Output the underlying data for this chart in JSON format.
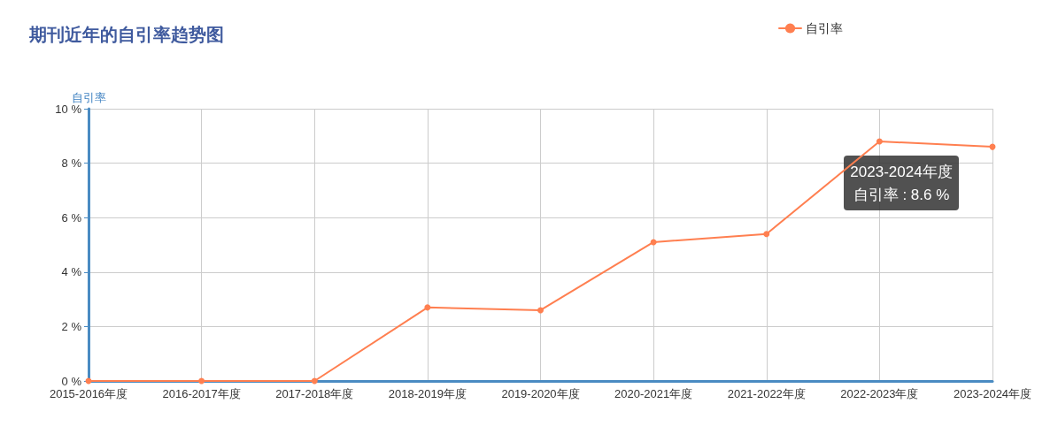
{
  "chart_data": {
    "type": "line",
    "title": "期刊近年的自引率趋势图",
    "ylabel": "自引率",
    "categories": [
      "2015-2016年度",
      "2016-2017年度",
      "2017-2018年度",
      "2018-2019年度",
      "2019-2020年度",
      "2020-2021年度",
      "2021-2022年度",
      "2022-2023年度",
      "2023-2024年度"
    ],
    "series": [
      {
        "name": "自引率",
        "color": "#ff7f50",
        "values": [
          0,
          0,
          0,
          2.7,
          2.6,
          5.1,
          5.4,
          8.8,
          8.6
        ]
      }
    ],
    "ylim": [
      0,
      10
    ],
    "yticks": [
      {
        "value": 0,
        "label": "0 %"
      },
      {
        "value": 2,
        "label": "2 %"
      },
      {
        "value": 4,
        "label": "4 %"
      },
      {
        "value": 6,
        "label": "6 %"
      },
      {
        "value": 8,
        "label": "8 %"
      },
      {
        "value": 10,
        "label": "10 %"
      }
    ],
    "grid": true,
    "legend": "top right",
    "marker": "circle",
    "line_style": "solid",
    "annotations": [
      "2023-2024年度",
      "自引率 : 8.6 %"
    ]
  }
}
